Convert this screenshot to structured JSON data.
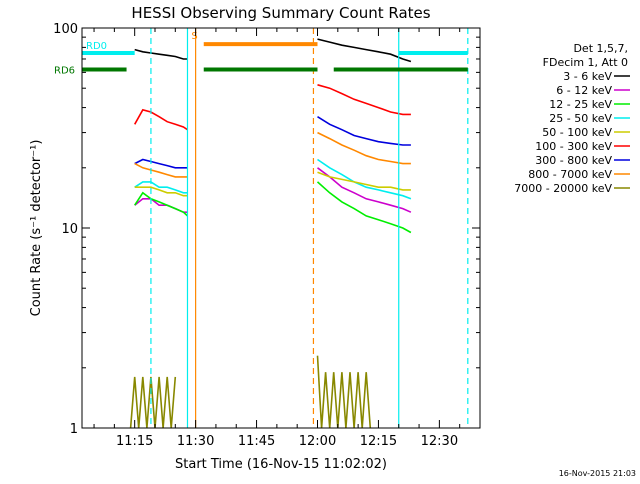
{
  "chart_data": {
    "type": "line",
    "title": "HESSI Observing Summary Count Rates",
    "xlabel": "Start Time (16-Nov-15 11:02:02)",
    "ylabel": "Count Rate (s⁻¹ detector⁻¹)",
    "y_scale": "log",
    "ylim": [
      1,
      100
    ],
    "xlim": [
      "11:02:02",
      "12:40:00"
    ],
    "x_ticks": [
      "11:15",
      "11:30",
      "11:45",
      "12:00",
      "12:15",
      "12:30"
    ],
    "y_ticks": [
      "1",
      "10",
      "100"
    ],
    "legend": {
      "placement": "right",
      "header": [
        "Det 1,5,7,",
        "FDecim 1, Att 0"
      ]
    },
    "series": [
      {
        "name": "3 - 6 keV",
        "color": "#000000",
        "segments": [
          {
            "t": [
              "11:15",
              "11:17",
              "11:19",
              "11:21",
              "11:23",
              "11:25",
              "11:27",
              "11:28"
            ],
            "v": [
              78,
              76,
              75,
              74,
              73,
              72,
              70,
              70
            ]
          },
          {
            "t": [
              "12:00",
              "12:03",
              "12:06",
              "12:09",
              "12:12",
              "12:15",
              "12:18",
              "12:21",
              "12:23"
            ],
            "v": [
              88,
              85,
              82,
              80,
              78,
              76,
              74,
              70,
              68
            ]
          }
        ]
      },
      {
        "name": "6 - 12 keV",
        "color": "#cc00cc",
        "segments": [
          {
            "t": [
              "11:15",
              "11:17",
              "11:19",
              "11:21",
              "11:23",
              "11:25",
              "11:27",
              "11:28"
            ],
            "v": [
              13,
              14,
              14,
              13,
              13,
              12.5,
              12,
              12
            ]
          },
          {
            "t": [
              "12:00",
              "12:03",
              "12:06",
              "12:09",
              "12:12",
              "12:15",
              "12:18",
              "12:21",
              "12:23"
            ],
            "v": [
              20,
              18,
              16,
              15,
              14,
              13.5,
              13,
              12.5,
              12
            ]
          }
        ]
      },
      {
        "name": "12 - 25 keV",
        "color": "#00ee00",
        "segments": [
          {
            "t": [
              "11:15",
              "11:17",
              "11:19",
              "11:21",
              "11:23",
              "11:25",
              "11:27",
              "11:28"
            ],
            "v": [
              13,
              15,
              14,
              13.5,
              13,
              12.5,
              12,
              11.5
            ]
          },
          {
            "t": [
              "12:00",
              "12:03",
              "12:06",
              "12:09",
              "12:12",
              "12:15",
              "12:18",
              "12:21",
              "12:23"
            ],
            "v": [
              17,
              15,
              13.5,
              12.5,
              11.5,
              11,
              10.5,
              10,
              9.5
            ]
          }
        ]
      },
      {
        "name": "25 - 50 keV",
        "color": "#00eeee",
        "segments": [
          {
            "t": [
              "11:15",
              "11:17",
              "11:19",
              "11:21",
              "11:23",
              "11:25",
              "11:27",
              "11:28"
            ],
            "v": [
              16,
              17,
              17,
              16,
              16,
              15.5,
              15,
              15
            ]
          },
          {
            "t": [
              "12:00",
              "12:03",
              "12:06",
              "12:09",
              "12:12",
              "12:15",
              "12:18",
              "12:21",
              "12:23"
            ],
            "v": [
              22,
              20,
              18.5,
              17,
              16,
              15.5,
              15,
              14.5,
              14
            ]
          }
        ]
      },
      {
        "name": "50 - 100 keV",
        "color": "#cccc00",
        "segments": [
          {
            "t": [
              "11:15",
              "11:17",
              "11:19",
              "11:21",
              "11:23",
              "11:25",
              "11:27",
              "11:28"
            ],
            "v": [
              16,
              16,
              16,
              15.5,
              15,
              15,
              14.5,
              14.5
            ]
          },
          {
            "t": [
              "12:00",
              "12:03",
              "12:06",
              "12:09",
              "12:12",
              "12:15",
              "12:18",
              "12:21",
              "12:23"
            ],
            "v": [
              19,
              18,
              17.5,
              17,
              16.5,
              16,
              16,
              15.5,
              15.5
            ]
          }
        ]
      },
      {
        "name": "100 - 300 keV",
        "color": "#ff0000",
        "segments": [
          {
            "t": [
              "11:15",
              "11:17",
              "11:19",
              "11:21",
              "11:23",
              "11:25",
              "11:27",
              "11:28"
            ],
            "v": [
              33,
              39,
              38,
              36,
              34,
              33,
              32,
              31
            ]
          },
          {
            "t": [
              "12:00",
              "12:03",
              "12:06",
              "12:09",
              "12:12",
              "12:15",
              "12:18",
              "12:21",
              "12:23"
            ],
            "v": [
              52,
              50,
              47,
              44,
              42,
              40,
              38,
              37,
              37
            ]
          }
        ]
      },
      {
        "name": "300 - 800 keV",
        "color": "#0000dd",
        "segments": [
          {
            "t": [
              "11:15",
              "11:17",
              "11:19",
              "11:21",
              "11:23",
              "11:25",
              "11:27",
              "11:28"
            ],
            "v": [
              21,
              22,
              21.5,
              21,
              20.5,
              20,
              20,
              20
            ]
          },
          {
            "t": [
              "12:00",
              "12:03",
              "12:06",
              "12:09",
              "12:12",
              "12:15",
              "12:18",
              "12:21",
              "12:23"
            ],
            "v": [
              36,
              33,
              31,
              29,
              28,
              27,
              26.5,
              26,
              26
            ]
          }
        ]
      },
      {
        "name": "800 - 7000 keV",
        "color": "#ff8800",
        "segments": [
          {
            "t": [
              "11:15",
              "11:17",
              "11:19",
              "11:21",
              "11:23",
              "11:25",
              "11:27",
              "11:28"
            ],
            "v": [
              21,
              20,
              19.5,
              19,
              18.5,
              18,
              18,
              18
            ]
          },
          {
            "t": [
              "12:00",
              "12:03",
              "12:06",
              "12:09",
              "12:12",
              "12:15",
              "12:18",
              "12:21",
              "12:23"
            ],
            "v": [
              30,
              28,
              26,
              24.5,
              23,
              22,
              21.5,
              21,
              21
            ]
          }
        ]
      },
      {
        "name": "7000 - 20000 keV",
        "color": "#888800",
        "segments": [
          {
            "t": [
              "11:14",
              "11:15",
              "11:16",
              "11:17",
              "11:18",
              "11:19",
              "11:20",
              "11:21",
              "11:22",
              "11:23",
              "11:24",
              "11:25"
            ],
            "v": [
              1,
              1.8,
              1,
              1.8,
              1,
              1.8,
              1,
              1.8,
              1,
              1.8,
              1,
              1.8
            ]
          },
          {
            "t": [
              "12:00",
              "12:01",
              "12:02",
              "12:03",
              "12:04",
              "12:05",
              "12:06",
              "12:07",
              "12:08",
              "12:09",
              "12:10",
              "12:11",
              "12:12",
              "12:13"
            ],
            "v": [
              2.3,
              1,
              1.9,
              1,
              1.9,
              1,
              1.9,
              1,
              1.9,
              1,
              1.9,
              1,
              1.9,
              1
            ]
          }
        ]
      }
    ],
    "annotations": [
      {
        "text": "RD0",
        "color": "#00eeee",
        "y": 75,
        "segments": [
          [
            "11:02:02",
            "11:15"
          ],
          [
            "12:20",
            "12:37"
          ]
        ]
      },
      {
        "text": "RD6",
        "color": "#007700",
        "y": 62,
        "segments": [
          [
            "11:02:02",
            "11:13"
          ],
          [
            "11:32",
            "12:00"
          ],
          [
            "12:04",
            "12:37"
          ]
        ]
      },
      {
        "text": "S",
        "color": "#ff8800",
        "y": 83,
        "segments": [
          [
            "11:32",
            "12:00"
          ]
        ]
      }
    ],
    "vertical_lines": [
      {
        "t": "11:19",
        "color": "#00eeee",
        "style": "dashed"
      },
      {
        "t": "11:28",
        "color": "#00eeee",
        "style": "solid"
      },
      {
        "t": "11:30",
        "color": "#ff8800",
        "style": "solid"
      },
      {
        "t": "11:59",
        "color": "#ff8800",
        "style": "dashed"
      },
      {
        "t": "12:20",
        "color": "#00eeee",
        "style": "solid"
      },
      {
        "t": "12:37",
        "color": "#00eeee",
        "style": "dashed"
      }
    ],
    "timestamp": "16-Nov-2015 21:03"
  }
}
